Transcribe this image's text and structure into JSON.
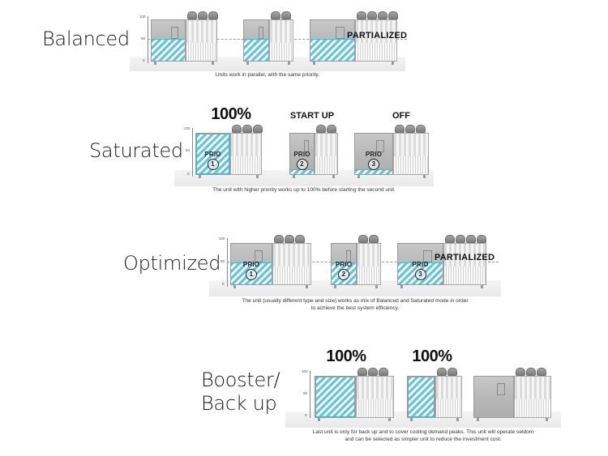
{
  "modes": [
    {
      "id": "balanced",
      "title": "Balanced",
      "caption": "Units work in parallel, with the same priority.",
      "axis": {
        "top": "100",
        "mid": "50",
        "bottom": "0"
      },
      "overlay_label": "PARTIALIZED",
      "units": [
        {
          "fill": 0.5,
          "label_above": "",
          "prio": "",
          "prio_num": ""
        },
        {
          "fill": 0.5,
          "label_above": "",
          "prio": "",
          "prio_num": ""
        },
        {
          "fill": 0.5,
          "label_above": "",
          "prio": "",
          "prio_num": ""
        }
      ]
    },
    {
      "id": "saturated",
      "title": "Saturated",
      "caption": "The unit with higher priority works up to 100% before starting the second unit.",
      "axis": {
        "top": "100",
        "mid": "50",
        "bottom": "0"
      },
      "units": [
        {
          "fill": 1.0,
          "label_above": "100%",
          "prio": "PRIO",
          "prio_num": "1"
        },
        {
          "fill": 0.1,
          "label_above": "START UP",
          "prio": "PRIO",
          "prio_num": "2"
        },
        {
          "fill": 0.1,
          "label_above": "OFF",
          "prio": "PRIO",
          "prio_num": "3"
        }
      ]
    },
    {
      "id": "optimized",
      "title": "Optimized",
      "caption_line1": "The unit (usually different type and size) works as mix of Balanced and Saturated mode in order",
      "caption_line2": "to achieve the best system efficiency.",
      "axis": {
        "top": "100",
        "mid": "50",
        "bottom": "0"
      },
      "overlay_label": "PARTIALIZED",
      "units": [
        {
          "fill": 0.5,
          "label_above": "",
          "prio": "PRIO",
          "prio_num": "1"
        },
        {
          "fill": 0.5,
          "label_above": "",
          "prio": "PRIO",
          "prio_num": "2"
        },
        {
          "fill": 0.5,
          "label_above": "",
          "prio": "PRIO",
          "prio_num": "3"
        }
      ]
    },
    {
      "id": "booster",
      "title_line1": "Booster/",
      "title_line2": "Back up",
      "caption_line1": "Last unit is only for back up and to cover cooling demand peaks. This unit will operate seldom",
      "caption_line2": "and can be selected as simpler unit to reduce the investment cost.",
      "axis": {
        "top": "100",
        "mid": "50",
        "bottom": "0"
      },
      "units": [
        {
          "fill": 1.0,
          "label_above": "100%",
          "prio": "",
          "prio_num": ""
        },
        {
          "fill": 1.0,
          "label_above": "100%",
          "prio": "",
          "prio_num": ""
        },
        {
          "fill": 0.0,
          "label_above": "",
          "prio": "",
          "prio_num": ""
        }
      ]
    }
  ],
  "colors": {
    "hatch": "#5fc6e0",
    "unit_body": "#bdbdbd",
    "text": "#1a1a1a"
  }
}
